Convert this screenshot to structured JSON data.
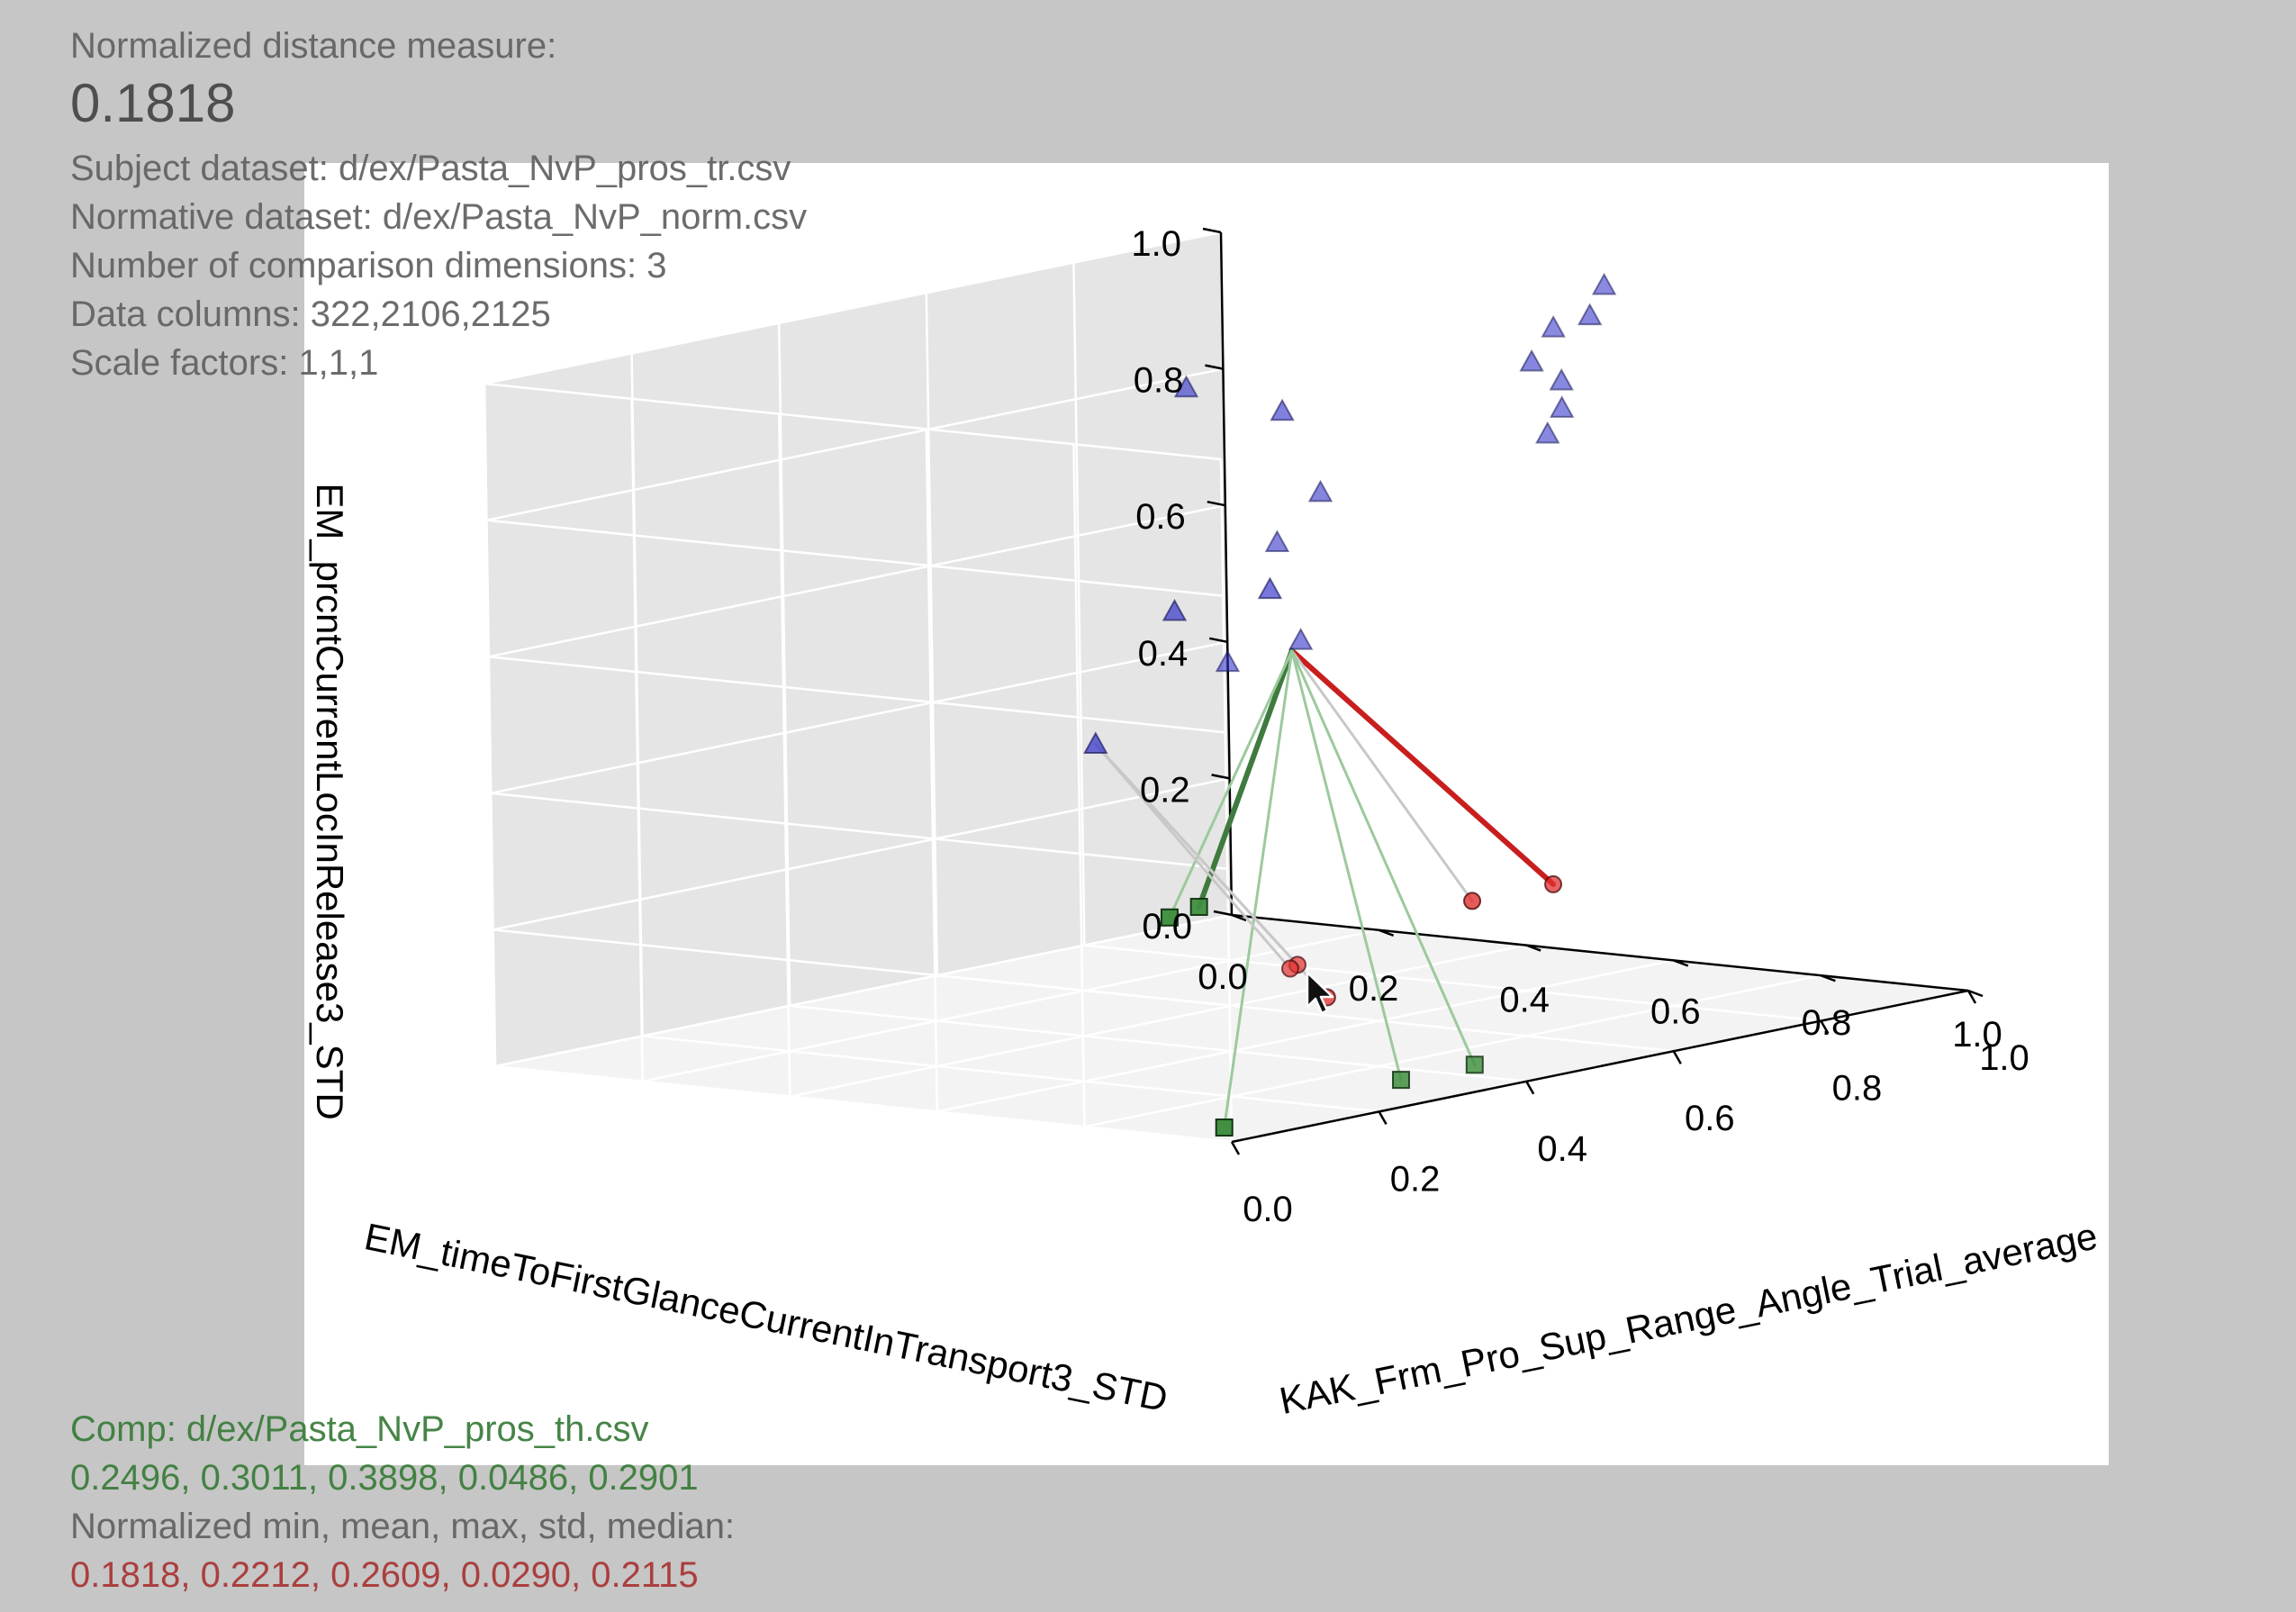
{
  "info": {
    "distance_label": "Normalized distance measure:",
    "distance_value": "0.1818",
    "subject": "Subject dataset: d/ex/Pasta_NvP_pros_tr.csv",
    "normative": "Normative dataset: d/ex/Pasta_NvP_norm.csv",
    "dimensions": "Number of comparison dimensions: 3",
    "columns": "Data columns: 322,2106,2125",
    "scales": "Scale factors: 1,1,1"
  },
  "footer": {
    "comp": "Comp: d/ex/Pasta_NvP_pros_th.csv",
    "comp_stats": "0.2496, 0.3011, 0.3898, 0.0486, 0.2901",
    "norm_caption": "Normalized min, mean, max, std, median:",
    "norm_stats": "0.1818, 0.2212, 0.2609, 0.0290, 0.2115"
  },
  "colors": {
    "subject_marker": "#2a2ac8",
    "subject_line": "#2f7a2f",
    "nearest_line": "#c81e1e",
    "normative_marker": "#e03030",
    "comp_marker": "#3f8f3f",
    "background": "#c6c6c6"
  },
  "icons": {
    "cursor": "mouse-pointer-icon"
  },
  "chart_data": {
    "type": "scatter",
    "projection": "3d",
    "axes": {
      "x": {
        "label": "EM_timeToFirstGlanceCurrentInTransport3_STD",
        "ticks": [
          "0.0",
          "0.2",
          "0.4",
          "0.6",
          "0.8",
          "1.0"
        ],
        "range": [
          0,
          1
        ]
      },
      "y": {
        "label": "KAK_Frm_Pro_Sup_Range_Angle_Trial_average",
        "ticks": [
          "0.0",
          "0.2",
          "0.4",
          "0.6",
          "0.8",
          "1.0"
        ],
        "range": [
          0,
          1
        ]
      },
      "z": {
        "label": "EM_prcntCurrentLocInRelease3_STD",
        "ticks": [
          "0.0",
          "0.2",
          "0.4",
          "0.6",
          "0.8",
          "1.0"
        ],
        "range": [
          0,
          1
        ]
      }
    },
    "grid": true,
    "series": [
      {
        "marker": "triangle",
        "color": "#2a2ac8",
        "points": [
          {
            "x": 0.05,
            "y": 0.9,
            "z": 0.8
          },
          {
            "x": 0.18,
            "y": 0.9,
            "z": 0.78
          },
          {
            "x": 0.18,
            "y": 0.95,
            "z": 0.65
          },
          {
            "x": 0.12,
            "y": 0.95,
            "z": 0.57
          },
          {
            "x": 0.15,
            "y": 0.95,
            "z": 0.43
          },
          {
            "x": 0.03,
            "y": 0.97,
            "z": 0.38
          },
          {
            "x": 0.48,
            "y": 0.98,
            "z": 0.8
          },
          {
            "x": 0.46,
            "y": 0.96,
            "z": 0.87
          },
          {
            "x": 0.45,
            "y": 1.0,
            "z": 0.91
          },
          {
            "x": 0.52,
            "y": 1.0,
            "z": 0.98
          },
          {
            "x": 0.52,
            "y": 0.98,
            "z": 0.94
          },
          {
            "x": 0.48,
            "y": 0.98,
            "z": 0.84
          },
          {
            "x": 0.46,
            "y": 0.98,
            "z": 0.76
          },
          {
            "x": 0.18,
            "y": 0.75,
            "z": 0.52
          },
          {
            "x": 0.26,
            "y": 0.8,
            "z": 0.55
          },
          {
            "x": 0.12,
            "y": 0.7,
            "z": 0.33
          }
        ]
      },
      {
        "marker": "circle",
        "color": "#e03030",
        "points": [
          {
            "x": 0.88,
            "y": 0.56,
            "z": 0.24
          },
          {
            "x": 0.88,
            "y": 0.45,
            "z": 0.24
          },
          {
            "x": 0.43,
            "y": 0.66,
            "z": 0.05
          },
          {
            "x": 0.41,
            "y": 0.67,
            "z": 0.04
          },
          {
            "x": 0.57,
            "y": 0.56,
            "z": 0.04
          }
        ]
      },
      {
        "marker": "square",
        "color": "#3f8f3f",
        "points": [
          {
            "x": 0.84,
            "y": 0.12,
            "z": 0.3
          },
          {
            "x": 0.86,
            "y": 0.06,
            "z": 0.3
          },
          {
            "x": 0.91,
            "y": 0.42,
            "z": 0.01
          },
          {
            "x": 0.91,
            "y": 0.32,
            "z": 0.01
          },
          {
            "x": 0.96,
            "y": 0.03,
            "z": 0.01
          }
        ]
      }
    ],
    "connections": [
      {
        "from": {
          "x": 0.61,
          "y": 0.48,
          "z": 0.57
        },
        "to": {
          "x": 0.88,
          "y": 0.56,
          "z": 0.24
        },
        "color": "#c81e1e"
      },
      {
        "from": {
          "x": 0.61,
          "y": 0.48,
          "z": 0.57
        },
        "to": {
          "x": 0.88,
          "y": 0.45,
          "z": 0.24
        },
        "color": "#c8c8c8"
      },
      {
        "from": {
          "x": 0.61,
          "y": 0.48,
          "z": 0.57
        },
        "to": {
          "x": 0.84,
          "y": 0.12,
          "z": 0.3
        },
        "color": "#3f7a3f"
      },
      {
        "from": {
          "x": 0.61,
          "y": 0.48,
          "z": 0.57
        },
        "to": {
          "x": 0.86,
          "y": 0.06,
          "z": 0.3
        },
        "color": "#9dc99d"
      },
      {
        "from": {
          "x": 0.61,
          "y": 0.48,
          "z": 0.57
        },
        "to": {
          "x": 0.91,
          "y": 0.42,
          "z": 0.01
        },
        "color": "#9dc99d"
      },
      {
        "from": {
          "x": 0.61,
          "y": 0.48,
          "z": 0.57
        },
        "to": {
          "x": 0.91,
          "y": 0.32,
          "z": 0.01
        },
        "color": "#9dc99d"
      },
      {
        "from": {
          "x": 0.61,
          "y": 0.48,
          "z": 0.57
        },
        "to": {
          "x": 0.96,
          "y": 0.03,
          "z": 0.01
        },
        "color": "#9dc99d"
      },
      {
        "from": {
          "x": 0.12,
          "y": 0.7,
          "z": 0.33
        },
        "to": {
          "x": 0.43,
          "y": 0.66,
          "z": 0.05
        },
        "color": "#c8c8c8"
      },
      {
        "from": {
          "x": 0.12,
          "y": 0.7,
          "z": 0.33
        },
        "to": {
          "x": 0.41,
          "y": 0.67,
          "z": 0.04
        },
        "color": "#c8c8c8"
      },
      {
        "from": {
          "x": 0.12,
          "y": 0.7,
          "z": 0.33
        },
        "to": {
          "x": 0.57,
          "y": 0.56,
          "z": 0.04
        },
        "color": "#c8c8c8"
      }
    ]
  }
}
